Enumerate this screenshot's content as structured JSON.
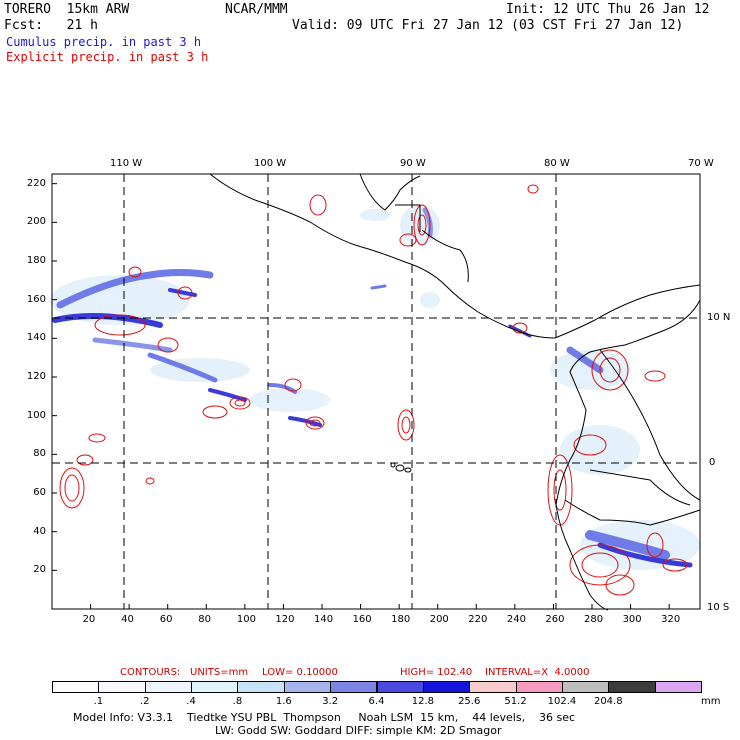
{
  "header": {
    "model": "TORERO  15km ARW",
    "org": "NCAR/MMM",
    "init": "Init: 12 UTC Thu 26 Jan 12",
    "fcst": "Fcst:   21 h",
    "valid": "Valid: 09 UTC Fri 27 Jan 12 (03 CST Fri 27 Jan 12)",
    "field1": "Cumulus precip. in past 3 h",
    "field2": "Explicit precip. in past 3 h",
    "field1_color": "#1a1ad0",
    "field2_color": "#e00000"
  },
  "axes": {
    "lon_labels": [
      "110 W",
      "100 W",
      "90 W",
      "80 W",
      "70 W"
    ],
    "lat_labels": [
      "10 N",
      "0",
      "10 S"
    ],
    "y_ticks": [
      "220",
      "200",
      "180",
      "160",
      "140",
      "120",
      "100",
      "80",
      "60",
      "40",
      "20"
    ],
    "x_ticks": [
      "20",
      "40",
      "60",
      "80",
      "100",
      "120",
      "140",
      "160",
      "180",
      "200",
      "220",
      "240",
      "260",
      "280",
      "300",
      "320"
    ]
  },
  "contours": {
    "label": "CONTOURS:",
    "units": "UNITS=mm",
    "low": "LOW= 0.10000",
    "high": "HIGH= 102.40",
    "interval": "INTERVAL=X  4.0000",
    "color": "#cc0000"
  },
  "colorbar": {
    "labels": [
      ".1",
      ".2",
      ".4",
      ".8",
      "1.6",
      "3.2",
      "6.4",
      "12.8",
      "25.6",
      "51.2",
      "102.4",
      "204.8"
    ],
    "colors": [
      "#ffffff",
      "#f7f9ff",
      "#eef5ff",
      "#e2f4fb",
      "#c6e2f7",
      "#a6b4ec",
      "#7c84e4",
      "#4a4ae0",
      "#1414dc",
      "#f8cccc",
      "#f59ac0",
      "#bebebe",
      "#3c3c3c",
      "#dca6f2"
    ],
    "unit": "mm"
  },
  "footer": {
    "line1": "Model Info: V3.3.1    Tiedtke YSU PBL  Thompson     Noah LSM  15 km,    44 levels,    36 sec",
    "line2": "LW: Godd SW: Goddard DIFF: simple KM: 2D Smagor"
  }
}
